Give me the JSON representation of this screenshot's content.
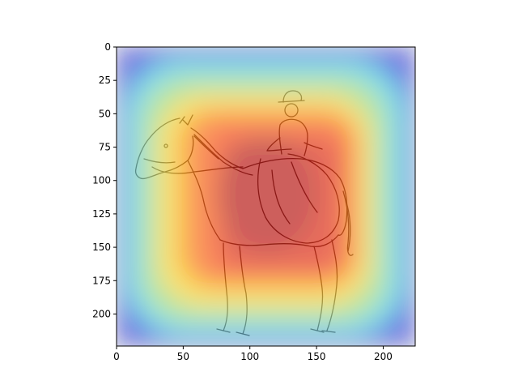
{
  "chart_data": {
    "type": "heatmap",
    "title": "",
    "xlabel": "",
    "ylabel": "",
    "xlim": [
      0,
      224
    ],
    "ylim": [
      224,
      0
    ],
    "y_inverted": true,
    "xticks": [
      0,
      50,
      100,
      150,
      200
    ],
    "yticks": [
      0,
      25,
      50,
      75,
      100,
      125,
      150,
      175,
      200
    ],
    "grid": false,
    "colormap": "jet",
    "overlay_alpha": 0.55,
    "background_image": "pencil-sketch-woman-riding-horse",
    "heat_peak": {
      "x": 112,
      "y": 112
    },
    "heat_core_extent": {
      "x": [
        70,
        180
      ],
      "y": [
        45,
        180
      ]
    }
  },
  "colors": {
    "heat_high": "#b40000",
    "heat_mid_high": "#ff3a00",
    "heat_mid": "#ffd700",
    "heat_mid_low": "#8fe070",
    "heat_low": "#2fd2e6",
    "heat_min": "#1a33e0",
    "axis": "#000000",
    "sketch_stroke": "#3a2a24"
  }
}
